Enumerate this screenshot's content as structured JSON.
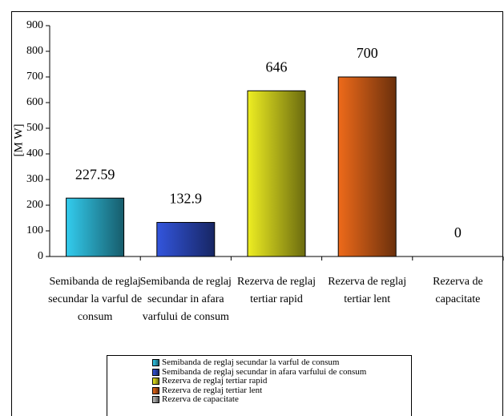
{
  "chart_data": {
    "type": "bar",
    "ylabel": "[M W]",
    "categories": [
      "Semibanda de reglaj secundar la varful de consum",
      "Semibanda de reglaj secundar in afara varfului de consum",
      "Rezerva de reglaj tertiar rapid",
      "Rezerva de reglaj tertiar lent",
      "Rezerva de capacitate"
    ],
    "values": [
      227.59,
      132.9,
      646,
      700,
      0
    ],
    "colors": [
      "#33ccee",
      "#3355dd",
      "#eeee22",
      "#ee6a1a",
      "#c0c0c0"
    ],
    "ylim": [
      0,
      900
    ],
    "yticks": [
      0,
      100,
      200,
      300,
      400,
      500,
      600,
      700,
      800,
      900
    ],
    "grid": false
  }
}
